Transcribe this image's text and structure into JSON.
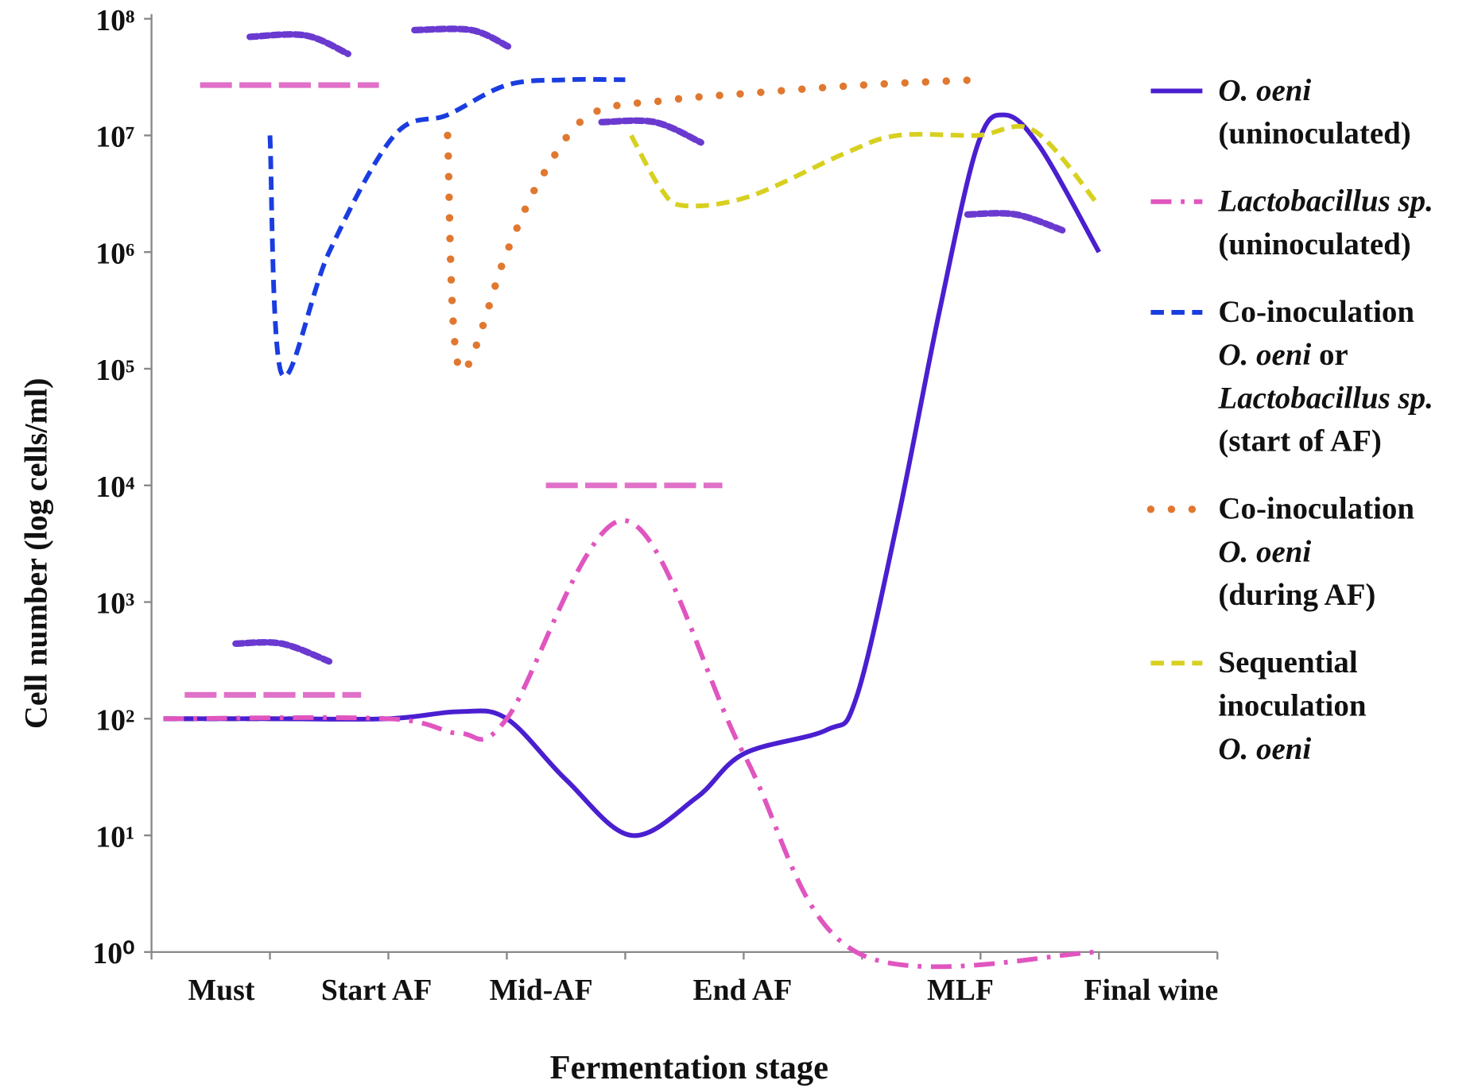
{
  "chart_data": {
    "type": "line",
    "x_axis_label": "Fermentation stage",
    "y_axis_label": "Cell number (log cells/ml)",
    "log_scale": true,
    "xlim": [
      0,
      9
    ],
    "xticks": [
      0,
      1,
      2,
      3,
      4,
      5,
      6,
      7,
      8,
      9
    ],
    "x_labels": [
      {
        "value": 0.59,
        "label": "Must"
      },
      {
        "value": 1.9,
        "label": "Start AF"
      },
      {
        "value": 3.29,
        "label": "Mid-AF"
      },
      {
        "value": 4.99,
        "label": "End AF"
      },
      {
        "value": 6.83,
        "label": "MLF"
      },
      {
        "value": 8.44,
        "label": "Final wine"
      }
    ],
    "ylim": [
      1,
      100000000
    ],
    "yticks": [
      {
        "value": 1,
        "label": "10⁰"
      },
      {
        "value": 10,
        "label": "10¹"
      },
      {
        "value": 100,
        "label": "10²"
      },
      {
        "value": 1000,
        "label": "10³"
      },
      {
        "value": 10000,
        "label": "10⁴"
      },
      {
        "value": 100000,
        "label": "10⁵"
      },
      {
        "value": 1000000,
        "label": "10⁶"
      },
      {
        "value": 10000000,
        "label": "10⁷"
      },
      {
        "value": 100000000,
        "label": "10⁸"
      }
    ],
    "series": [
      {
        "name": [
          [
            {
              "text": "O. oeni",
              "italic": true
            }
          ],
          [
            {
              "text": "(uninoculated)",
              "italic": false
            }
          ]
        ],
        "color": "#4a1fd0",
        "style": "solid",
        "x": [
          0.1,
          1.0,
          2.0,
          2.6,
          3.0,
          3.5,
          4.05,
          4.6,
          5.0,
          5.7,
          5.95,
          6.3,
          6.65,
          6.97,
          7.2,
          7.5,
          8.0
        ],
        "values": [
          100,
          100,
          100,
          115,
          100,
          30,
          10,
          21,
          50,
          80,
          150,
          5000,
          300000,
          8000000,
          15000000,
          8000000,
          1000000
        ]
      },
      {
        "name": [
          [
            {
              "text": "Lactobacillus sp.",
              "italic": true
            }
          ],
          [
            {
              "text": "(uninoculated)",
              "italic": false
            }
          ]
        ],
        "color": "#e055c0",
        "style": "dashdot",
        "x": [
          0.1,
          2.0,
          2.6,
          3.0,
          4.0,
          5.0,
          5.95,
          8.0
        ],
        "values": [
          100,
          100,
          75,
          100,
          5000,
          50,
          1,
          1
        ]
      },
      {
        "name": [
          [
            {
              "text": "Co-inoculation",
              "italic": false
            }
          ],
          [
            {
              "text": "O. oeni",
              "italic": true
            },
            {
              "text": "  or",
              "italic": false
            }
          ],
          [
            {
              "text": "Lactobacillus sp.",
              "italic": true
            }
          ],
          [
            {
              "text": "(start of AF)",
              "italic": false
            }
          ]
        ],
        "color": "#1a3de0",
        "style": "dash",
        "x": [
          1.0,
          1.1,
          1.5,
          2.05,
          2.5,
          3.0,
          3.5,
          4.0
        ],
        "values": [
          10000000,
          90000,
          1000000,
          10000000,
          15000000,
          27000000,
          30000000,
          30000000
        ]
      },
      {
        "name": [
          [
            {
              "text": "Co-inoculation",
              "italic": false
            }
          ],
          [
            {
              "text": "O. oeni",
              "italic": true
            }
          ],
          [
            {
              "text": "(during AF)",
              "italic": false
            }
          ]
        ],
        "color": "#e07830",
        "style": "dot",
        "x": [
          2.5,
          2.6,
          3.0,
          3.3,
          3.7,
          4.35,
          5.05,
          6.0,
          6.97
        ],
        "values": [
          10000000,
          100000,
          1000000,
          4500000,
          15000000,
          20000000,
          23000000,
          27000000,
          30000000
        ]
      },
      {
        "name": [
          [
            {
              "text": "Sequential",
              "italic": false
            }
          ],
          [
            {
              "text": "inoculation",
              "italic": false
            }
          ],
          [
            {
              "text": "O. oeni",
              "italic": true
            }
          ]
        ],
        "color": "#d8d020",
        "style": "dash",
        "x": [
          4.05,
          4.3,
          4.5,
          5.05,
          5.85,
          6.3,
          6.97,
          7.45,
          8.0
        ],
        "values": [
          10000000,
          3500000,
          2500000,
          3000000,
          7000000,
          10000000,
          10000000,
          11000000,
          2500000
        ]
      }
    ],
    "markers": [
      {
        "color": "#e070c8",
        "style": "bar",
        "x": [
          0.41,
          1.92
        ],
        "values": [
          27000000,
          27000000
        ]
      },
      {
        "color": "#e070c8",
        "style": "bar",
        "x": [
          0.28,
          1.77
        ],
        "values": [
          160,
          160
        ]
      },
      {
        "color": "#e070c8",
        "style": "bar",
        "x": [
          3.33,
          4.82
        ],
        "values": [
          10000,
          10000
        ]
      },
      {
        "color": "#6a3ad0",
        "style": "arc",
        "x": [
          0.83,
          1.3,
          1.66
        ],
        "values": [
          70000000,
          72000000,
          50000000
        ]
      },
      {
        "color": "#6a3ad0",
        "style": "arc",
        "x": [
          2.22,
          2.7,
          3.01
        ],
        "values": [
          80000000,
          80000000,
          58000000
        ]
      },
      {
        "color": "#6a3ad0",
        "style": "arc",
        "x": [
          3.8,
          4.25,
          4.64
        ],
        "values": [
          13000000,
          13000000,
          8700000
        ]
      },
      {
        "color": "#6a3ad0",
        "style": "arc",
        "x": [
          6.89,
          7.3,
          7.72
        ],
        "values": [
          2100000,
          2100000,
          1500000
        ]
      },
      {
        "color": "#6a3ad0",
        "style": "arc",
        "x": [
          0.71,
          1.1,
          1.5
        ],
        "values": [
          440,
          440,
          310
        ]
      },
      {
        "color": "#111111",
        "style": "dash",
        "x": [
          0.1,
          1.2
        ],
        "values": [
          100,
          100
        ]
      }
    ]
  }
}
